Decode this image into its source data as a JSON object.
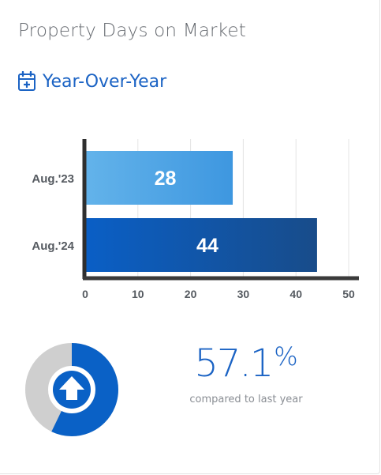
{
  "widget": {
    "title": "Property Days on Market",
    "subtitle": "Year-Over-Year",
    "subtitle_icon": "calendar-plus-icon"
  },
  "chart_data": {
    "type": "bar",
    "orientation": "horizontal",
    "categories": [
      "Aug.'23",
      "Aug.'24"
    ],
    "values": [
      28,
      44
    ],
    "xlim": [
      0,
      50
    ],
    "xticks": [
      "0",
      "10",
      "20",
      "30",
      "40",
      "50"
    ],
    "grid": true,
    "colors": [
      "#4fa6e4",
      "#0a56b4"
    ]
  },
  "comparison": {
    "percent_value": "57.1",
    "percent_sign": "%",
    "caption": "compared to last year",
    "direction_icon": "arrow-up-icon",
    "ring_fraction": 0.571,
    "accent_color": "#0a61c6",
    "track_color": "#cfcfcf"
  }
}
